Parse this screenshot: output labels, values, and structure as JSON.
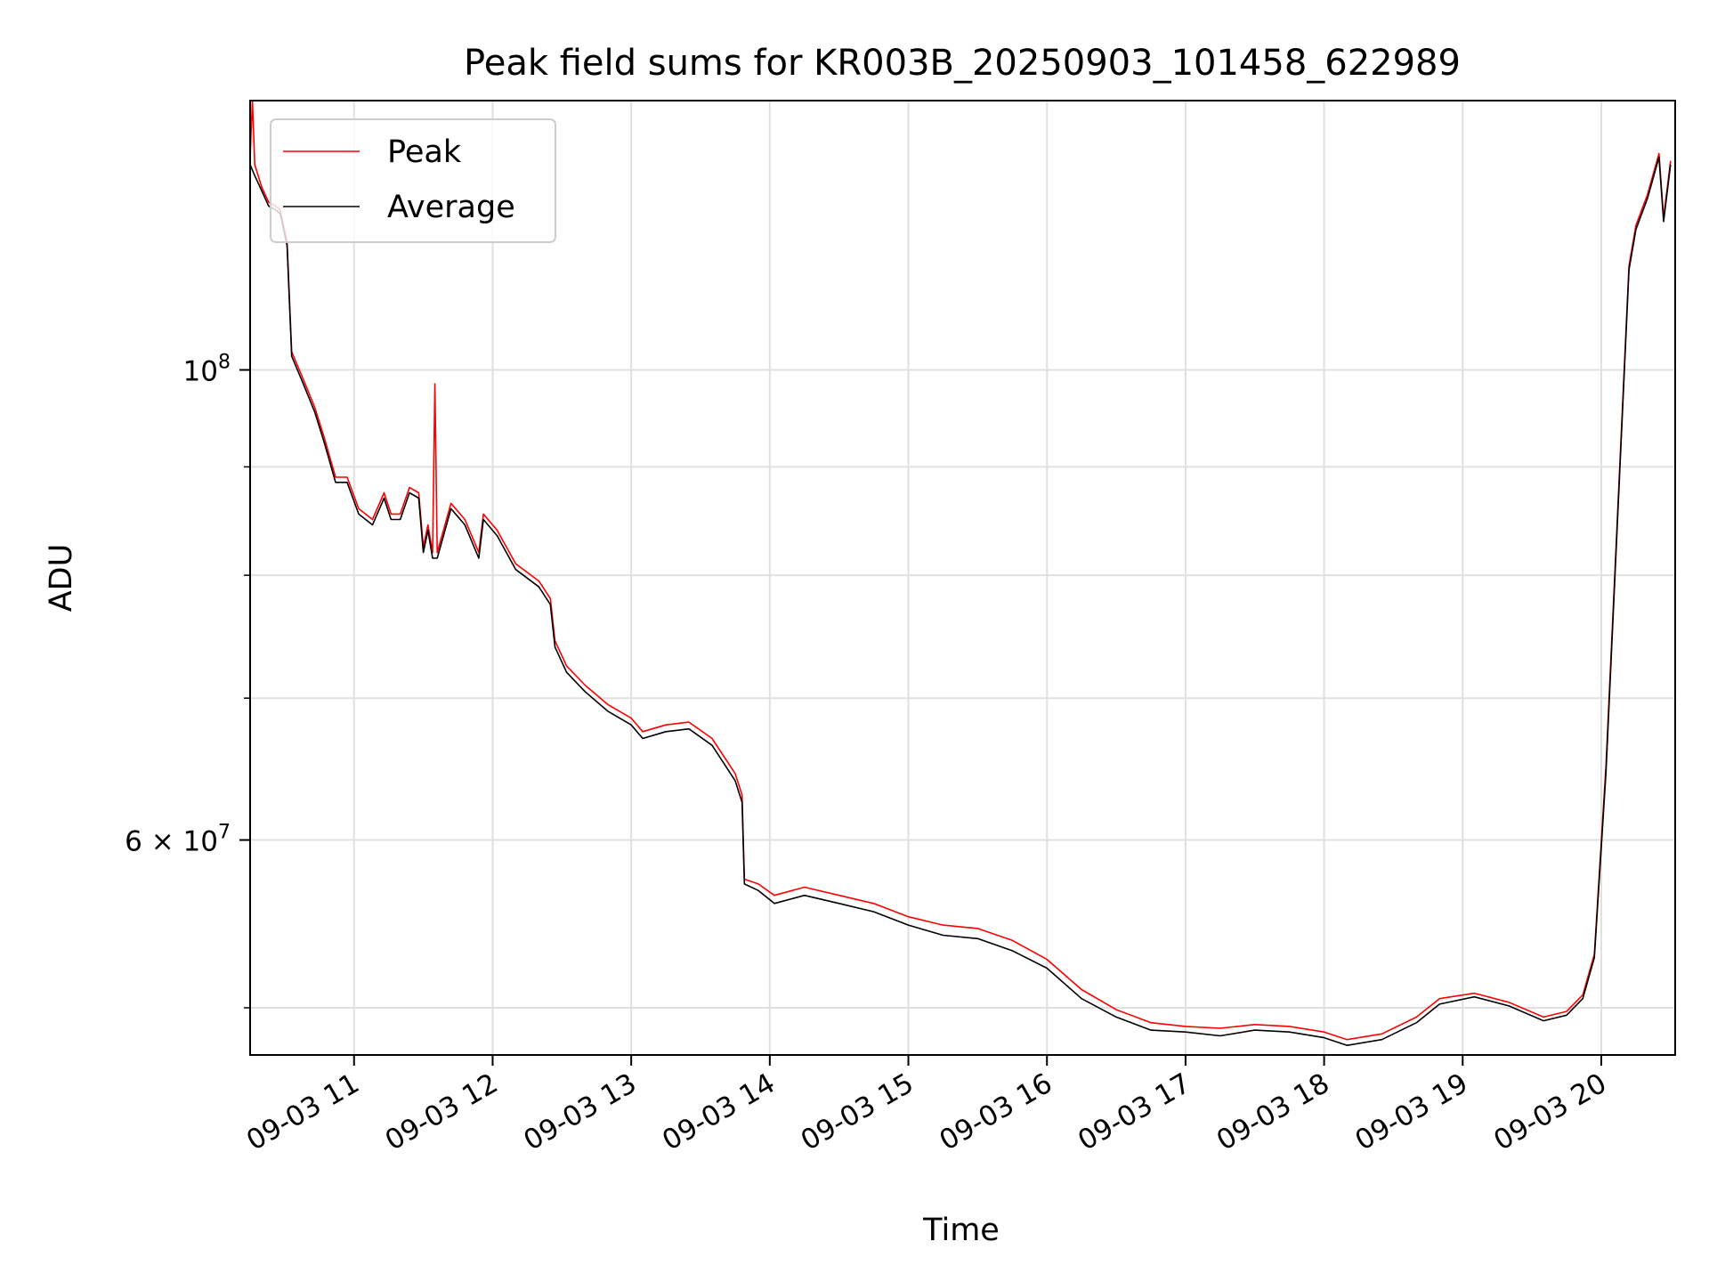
{
  "chart_data": {
    "type": "line",
    "title": "Peak field sums for KR003B_20250903_101458_622989",
    "xlabel": "Time",
    "ylabel": "ADU",
    "xscale": "time",
    "yscale": "log",
    "xlim": [
      "2025-09-03 10:15",
      "2025-09-03 20:32"
    ],
    "ylim": [
      47500000.0,
      134000000.0
    ],
    "grid": true,
    "legend_position": "upper-left",
    "x_ticks": [
      "09-03 11",
      "09-03 12",
      "09-03 13",
      "09-03 14",
      "09-03 15",
      "09-03 16",
      "09-03 17",
      "09-03 18",
      "09-03 19",
      "09-03 20"
    ],
    "y_ticks_major": [
      {
        "label_base": "10",
        "label_exp": "8",
        "label_mult": "",
        "value": 100000000.0
      },
      {
        "label_base": "10",
        "label_exp": "7",
        "label_mult": "6 × ",
        "value": 60000000.0
      }
    ],
    "y_ticks_minor": [
      50000000.0,
      70000000.0,
      80000000.0,
      90000000.0
    ],
    "series": [
      {
        "name": "Peak",
        "color": "#ff0000",
        "points": [
          [
            "2025-09-03 10:15",
            126000000.0
          ],
          [
            "2025-09-03 10:16",
            134000000.0
          ],
          [
            "2025-09-03 10:17",
            125000000.0
          ],
          [
            "2025-09-03 10:20",
            122000000.0
          ],
          [
            "2025-09-03 10:23",
            120000000.0
          ],
          [
            "2025-09-03 10:26",
            119500000.0
          ],
          [
            "2025-09-03 10:28",
            119000000.0
          ],
          [
            "2025-09-03 10:31",
            115000000.0
          ],
          [
            "2025-09-03 10:33",
            102000000.0
          ],
          [
            "2025-09-03 10:38",
            99000000.0
          ],
          [
            "2025-09-03 10:43",
            96000000.0
          ],
          [
            "2025-09-03 10:47",
            93000000.0
          ],
          [
            "2025-09-03 10:52",
            89000000.0
          ],
          [
            "2025-09-03 10:57",
            89000000.0
          ],
          [
            "2025-09-03 11:02",
            86000000.0
          ],
          [
            "2025-09-03 11:08",
            85000000.0
          ],
          [
            "2025-09-03 11:13",
            87500000.0
          ],
          [
            "2025-09-03 11:16",
            85500000.0
          ],
          [
            "2025-09-03 11:20",
            85500000.0
          ],
          [
            "2025-09-03 11:24",
            88000000.0
          ],
          [
            "2025-09-03 11:28",
            87500000.0
          ],
          [
            "2025-09-03 11:30",
            82500000.0
          ],
          [
            "2025-09-03 11:32",
            84500000.0
          ],
          [
            "2025-09-03 11:34",
            82000000.0
          ],
          [
            "2025-09-03 11:35",
            98500000.0
          ],
          [
            "2025-09-03 11:36",
            82000000.0
          ],
          [
            "2025-09-03 11:42",
            86500000.0
          ],
          [
            "2025-09-03 11:48",
            85000000.0
          ],
          [
            "2025-09-03 11:54",
            82000000.0
          ],
          [
            "2025-09-03 11:56",
            85500000.0
          ],
          [
            "2025-09-03 12:02",
            84000000.0
          ],
          [
            "2025-09-03 12:10",
            81000000.0
          ],
          [
            "2025-09-03 12:20",
            79500000.0
          ],
          [
            "2025-09-03 12:25",
            78000000.0
          ],
          [
            "2025-09-03 12:27",
            74500000.0
          ],
          [
            "2025-09-03 12:32",
            72500000.0
          ],
          [
            "2025-09-03 12:40",
            71000000.0
          ],
          [
            "2025-09-03 12:50",
            69500000.0
          ],
          [
            "2025-09-03 13:00",
            68500000.0
          ],
          [
            "2025-09-03 13:05",
            67500000.0
          ],
          [
            "2025-09-03 13:15",
            68000000.0
          ],
          [
            "2025-09-03 13:25",
            68200000.0
          ],
          [
            "2025-09-03 13:35",
            67000000.0
          ],
          [
            "2025-09-03 13:45",
            64500000.0
          ],
          [
            "2025-09-03 13:48",
            63000000.0
          ],
          [
            "2025-09-03 13:49",
            57500000.0
          ],
          [
            "2025-09-03 13:55",
            57200000.0
          ],
          [
            "2025-09-03 14:02",
            56500000.0
          ],
          [
            "2025-09-03 14:15",
            57000000.0
          ],
          [
            "2025-09-03 14:30",
            56500000.0
          ],
          [
            "2025-09-03 14:45",
            56000000.0
          ],
          [
            "2025-09-03 15:00",
            55200000.0
          ],
          [
            "2025-09-03 15:15",
            54700000.0
          ],
          [
            "2025-09-03 15:30",
            54500000.0
          ],
          [
            "2025-09-03 15:45",
            53800000.0
          ],
          [
            "2025-09-03 16:00",
            52700000.0
          ],
          [
            "2025-09-03 16:15",
            51000000.0
          ],
          [
            "2025-09-03 16:30",
            49900000.0
          ],
          [
            "2025-09-03 16:45",
            49200000.0
          ],
          [
            "2025-09-03 17:00",
            49000000.0
          ],
          [
            "2025-09-03 17:15",
            48900000.0
          ],
          [
            "2025-09-03 17:30",
            49100000.0
          ],
          [
            "2025-09-03 17:45",
            49000000.0
          ],
          [
            "2025-09-03 18:00",
            48700000.0
          ],
          [
            "2025-09-03 18:10",
            48300000.0
          ],
          [
            "2025-09-03 18:25",
            48600000.0
          ],
          [
            "2025-09-03 18:40",
            49500000.0
          ],
          [
            "2025-09-03 18:50",
            50500000.0
          ],
          [
            "2025-09-03 19:05",
            50800000.0
          ],
          [
            "2025-09-03 19:20",
            50300000.0
          ],
          [
            "2025-09-03 19:35",
            49500000.0
          ],
          [
            "2025-09-03 19:45",
            49800000.0
          ],
          [
            "2025-09-03 19:52",
            50700000.0
          ],
          [
            "2025-09-03 19:57",
            53000000.0
          ],
          [
            "2025-09-03 20:02",
            65000000.0
          ],
          [
            "2025-09-03 20:08",
            90000000.0
          ],
          [
            "2025-09-03 20:12",
            112000000.0
          ],
          [
            "2025-09-03 20:15",
            117000000.0
          ],
          [
            "2025-09-03 20:20",
            121000000.0
          ],
          [
            "2025-09-03 20:25",
            126500000.0
          ],
          [
            "2025-09-03 20:27",
            118000000.0
          ],
          [
            "2025-09-03 20:30",
            125500000.0
          ]
        ]
      },
      {
        "name": "Average",
        "color": "#000000",
        "points": [
          [
            "2025-09-03 10:15",
            125000000.0
          ],
          [
            "2025-09-03 10:17",
            123500000.0
          ],
          [
            "2025-09-03 10:20",
            121500000.0
          ],
          [
            "2025-09-03 10:23",
            119500000.0
          ],
          [
            "2025-09-03 10:26",
            119000000.0
          ],
          [
            "2025-09-03 10:28",
            118500000.0
          ],
          [
            "2025-09-03 10:31",
            114500000.0
          ],
          [
            "2025-09-03 10:33",
            101500000.0
          ],
          [
            "2025-09-03 10:38",
            98500000.0
          ],
          [
            "2025-09-03 10:43",
            95500000.0
          ],
          [
            "2025-09-03 10:47",
            92500000.0
          ],
          [
            "2025-09-03 10:52",
            88500000.0
          ],
          [
            "2025-09-03 10:57",
            88500000.0
          ],
          [
            "2025-09-03 11:02",
            85500000.0
          ],
          [
            "2025-09-03 11:08",
            84500000.0
          ],
          [
            "2025-09-03 11:13",
            87000000.0
          ],
          [
            "2025-09-03 11:16",
            85000000.0
          ],
          [
            "2025-09-03 11:20",
            85000000.0
          ],
          [
            "2025-09-03 11:24",
            87500000.0
          ],
          [
            "2025-09-03 11:28",
            87000000.0
          ],
          [
            "2025-09-03 11:30",
            82000000.0
          ],
          [
            "2025-09-03 11:32",
            84000000.0
          ],
          [
            "2025-09-03 11:34",
            81500000.0
          ],
          [
            "2025-09-03 11:36",
            81500000.0
          ],
          [
            "2025-09-03 11:42",
            86000000.0
          ],
          [
            "2025-09-03 11:48",
            84500000.0
          ],
          [
            "2025-09-03 11:54",
            81500000.0
          ],
          [
            "2025-09-03 11:56",
            85000000.0
          ],
          [
            "2025-09-03 12:02",
            83500000.0
          ],
          [
            "2025-09-03 12:10",
            80500000.0
          ],
          [
            "2025-09-03 12:20",
            79000000.0
          ],
          [
            "2025-09-03 12:25",
            77500000.0
          ],
          [
            "2025-09-03 12:27",
            74000000.0
          ],
          [
            "2025-09-03 12:32",
            72000000.0
          ],
          [
            "2025-09-03 12:40",
            70500000.0
          ],
          [
            "2025-09-03 12:50",
            69000000.0
          ],
          [
            "2025-09-03 13:00",
            68000000.0
          ],
          [
            "2025-09-03 13:05",
            67000000.0
          ],
          [
            "2025-09-03 13:15",
            67500000.0
          ],
          [
            "2025-09-03 13:25",
            67700000.0
          ],
          [
            "2025-09-03 13:35",
            66500000.0
          ],
          [
            "2025-09-03 13:45",
            64000000.0
          ],
          [
            "2025-09-03 13:48",
            62500000.0
          ],
          [
            "2025-09-03 13:49",
            57200000.0
          ],
          [
            "2025-09-03 13:55",
            56800000.0
          ],
          [
            "2025-09-03 14:02",
            56000000.0
          ],
          [
            "2025-09-03 14:15",
            56500000.0
          ],
          [
            "2025-09-03 14:30",
            56000000.0
          ],
          [
            "2025-09-03 14:45",
            55500000.0
          ],
          [
            "2025-09-03 15:00",
            54700000.0
          ],
          [
            "2025-09-03 15:15",
            54100000.0
          ],
          [
            "2025-09-03 15:30",
            53900000.0
          ],
          [
            "2025-09-03 15:45",
            53200000.0
          ],
          [
            "2025-09-03 16:00",
            52200000.0
          ],
          [
            "2025-09-03 16:15",
            50500000.0
          ],
          [
            "2025-09-03 16:30",
            49500000.0
          ],
          [
            "2025-09-03 16:45",
            48800000.0
          ],
          [
            "2025-09-03 17:00",
            48700000.0
          ],
          [
            "2025-09-03 17:15",
            48500000.0
          ],
          [
            "2025-09-03 17:30",
            48800000.0
          ],
          [
            "2025-09-03 17:45",
            48700000.0
          ],
          [
            "2025-09-03 18:00",
            48400000.0
          ],
          [
            "2025-09-03 18:10",
            48000000.0
          ],
          [
            "2025-09-03 18:25",
            48300000.0
          ],
          [
            "2025-09-03 18:40",
            49200000.0
          ],
          [
            "2025-09-03 18:50",
            50200000.0
          ],
          [
            "2025-09-03 19:05",
            50600000.0
          ],
          [
            "2025-09-03 19:20",
            50100000.0
          ],
          [
            "2025-09-03 19:35",
            49300000.0
          ],
          [
            "2025-09-03 19:45",
            49600000.0
          ],
          [
            "2025-09-03 19:52",
            50500000.0
          ],
          [
            "2025-09-03 19:57",
            52800000.0
          ],
          [
            "2025-09-03 20:02",
            64500000.0
          ],
          [
            "2025-09-03 20:08",
            89500000.0
          ],
          [
            "2025-09-03 20:12",
            111500000.0
          ],
          [
            "2025-09-03 20:15",
            116500000.0
          ],
          [
            "2025-09-03 20:20",
            120500000.0
          ],
          [
            "2025-09-03 20:25",
            126000000.0
          ],
          [
            "2025-09-03 20:27",
            117500000.0
          ],
          [
            "2025-09-03 20:30",
            125000000.0
          ]
        ]
      }
    ]
  }
}
